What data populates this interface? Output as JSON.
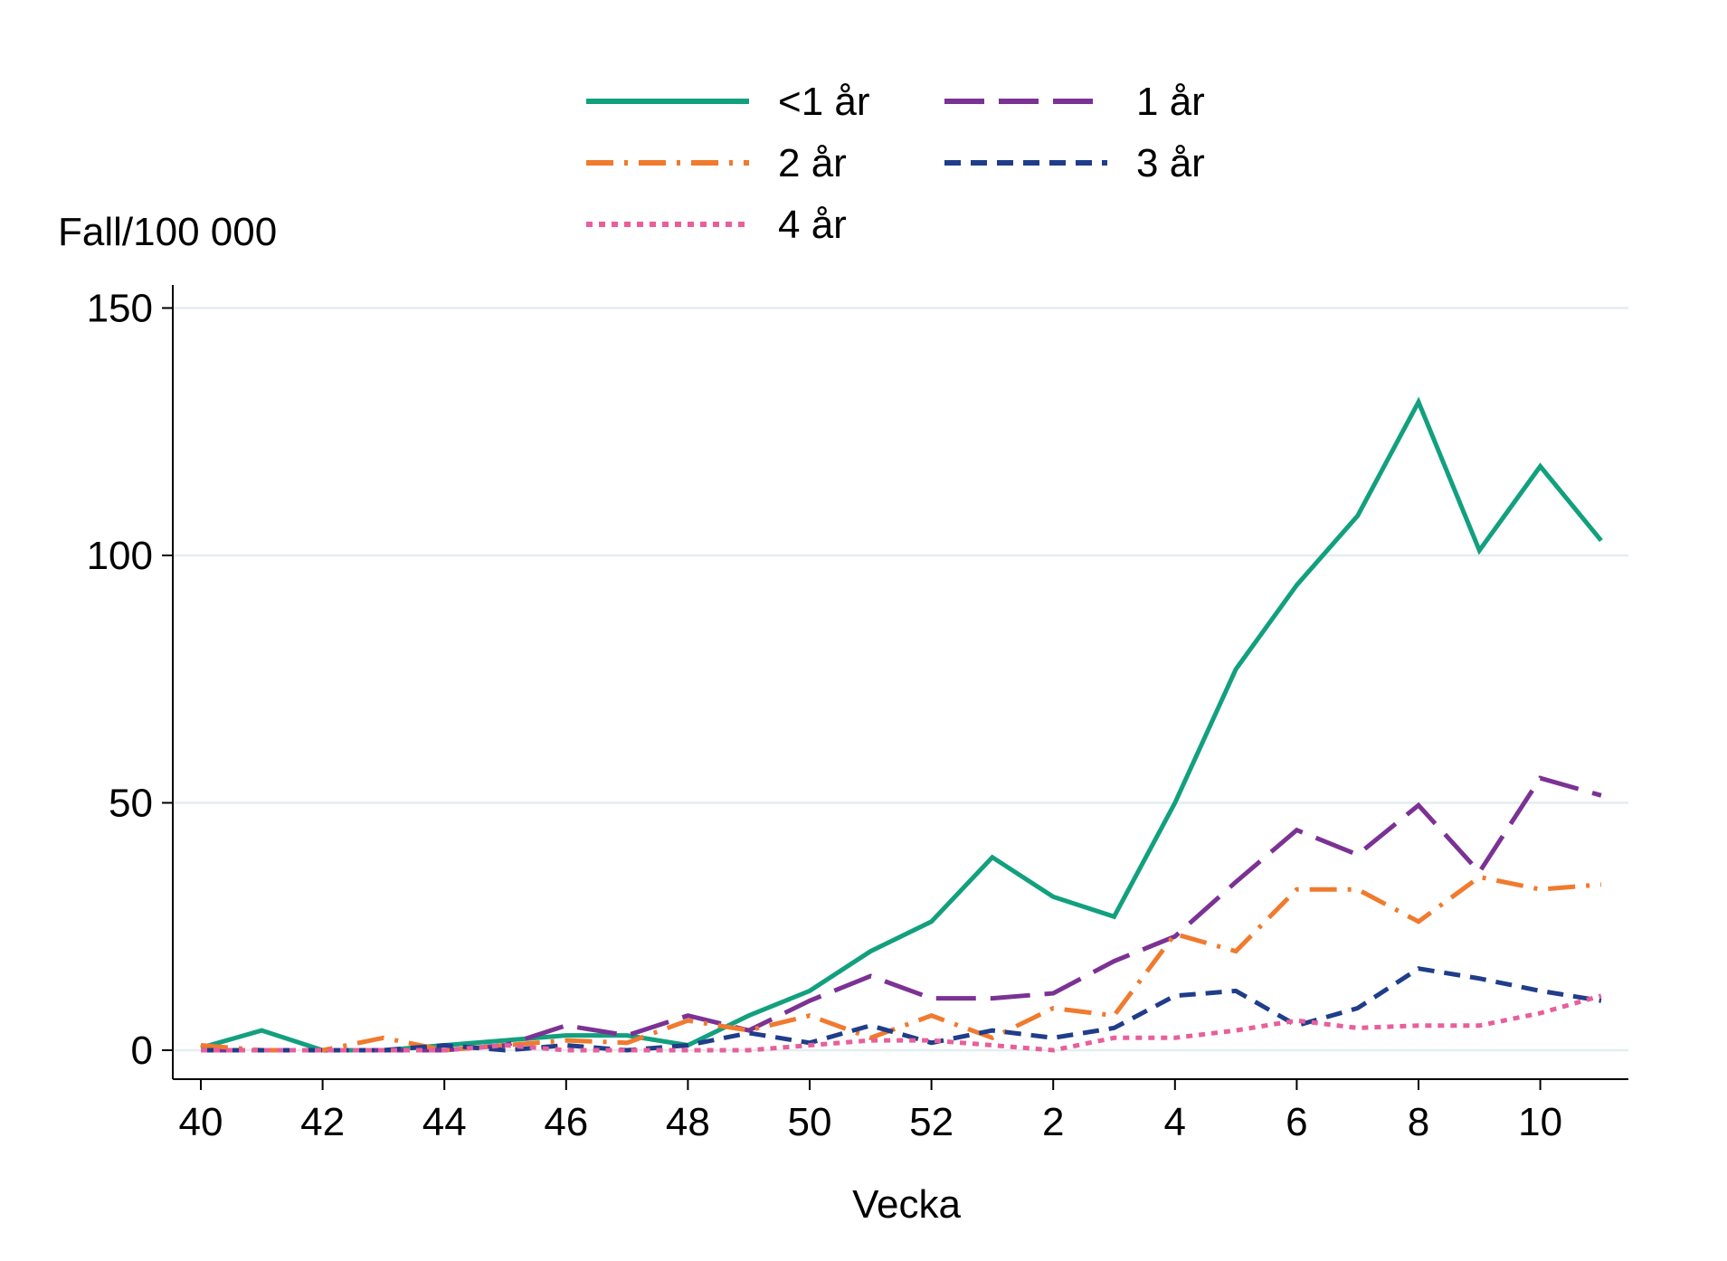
{
  "chart_data": {
    "type": "line",
    "ylabel": "Fall/100 000",
    "xlabel": "Vecka",
    "ylim": [
      0,
      150
    ],
    "yticks": [
      0,
      50,
      100,
      150
    ],
    "x_categories": [
      "40",
      "41",
      "42",
      "43",
      "44",
      "45",
      "46",
      "47",
      "48",
      "49",
      "50",
      "51",
      "52",
      "1",
      "2",
      "3",
      "4",
      "5",
      "6",
      "7",
      "8",
      "9",
      "10",
      "11"
    ],
    "xtick_labels": [
      "40",
      "42",
      "44",
      "46",
      "48",
      "50",
      "52",
      "2",
      "4",
      "6",
      "8",
      "10"
    ],
    "grid": true,
    "legend_position": "top",
    "series": [
      {
        "name": "<1 år",
        "color": "#12a07f",
        "dash": "solid",
        "values": [
          0.5,
          4,
          0,
          0,
          1,
          2,
          3,
          3,
          1,
          7,
          12,
          20,
          26,
          39,
          31,
          27,
          50,
          77,
          94,
          108,
          131,
          101,
          118,
          103
        ]
      },
      {
        "name": "1 år",
        "color": "#7b3294",
        "dash": "longdash",
        "values": [
          0,
          0,
          0,
          0,
          0,
          1,
          5,
          3,
          7,
          4,
          10,
          15,
          10.5,
          10.5,
          11.5,
          18,
          23,
          34,
          44.5,
          39.5,
          49.5,
          36,
          55,
          51.5
        ]
      },
      {
        "name": "2 år",
        "color": "#f07a2e",
        "dash": "dashdot",
        "values": [
          1,
          0,
          0,
          2.5,
          0,
          1,
          2,
          1.5,
          6,
          4,
          7,
          2.5,
          7,
          2.5,
          8.5,
          7,
          23.5,
          20,
          32.5,
          32.5,
          26,
          35,
          32.5,
          33.5
        ]
      },
      {
        "name": "3 år",
        "color": "#1f3d8a",
        "dash": "shortdash",
        "values": [
          0,
          0,
          0,
          0,
          1,
          0,
          1,
          0,
          1,
          3.5,
          1.5,
          5,
          1.5,
          4,
          2.5,
          4.5,
          11,
          12,
          5,
          8.5,
          16.5,
          14.5,
          12,
          10
        ]
      },
      {
        "name": "4 år",
        "color": "#e85f9c",
        "dash": "dot",
        "values": [
          0,
          0,
          0,
          0,
          0,
          1,
          0,
          0,
          0,
          0,
          1,
          2,
          2,
          1,
          0,
          2.5,
          2.5,
          4,
          6,
          4.5,
          5,
          5,
          7.5,
          11
        ]
      }
    ]
  }
}
